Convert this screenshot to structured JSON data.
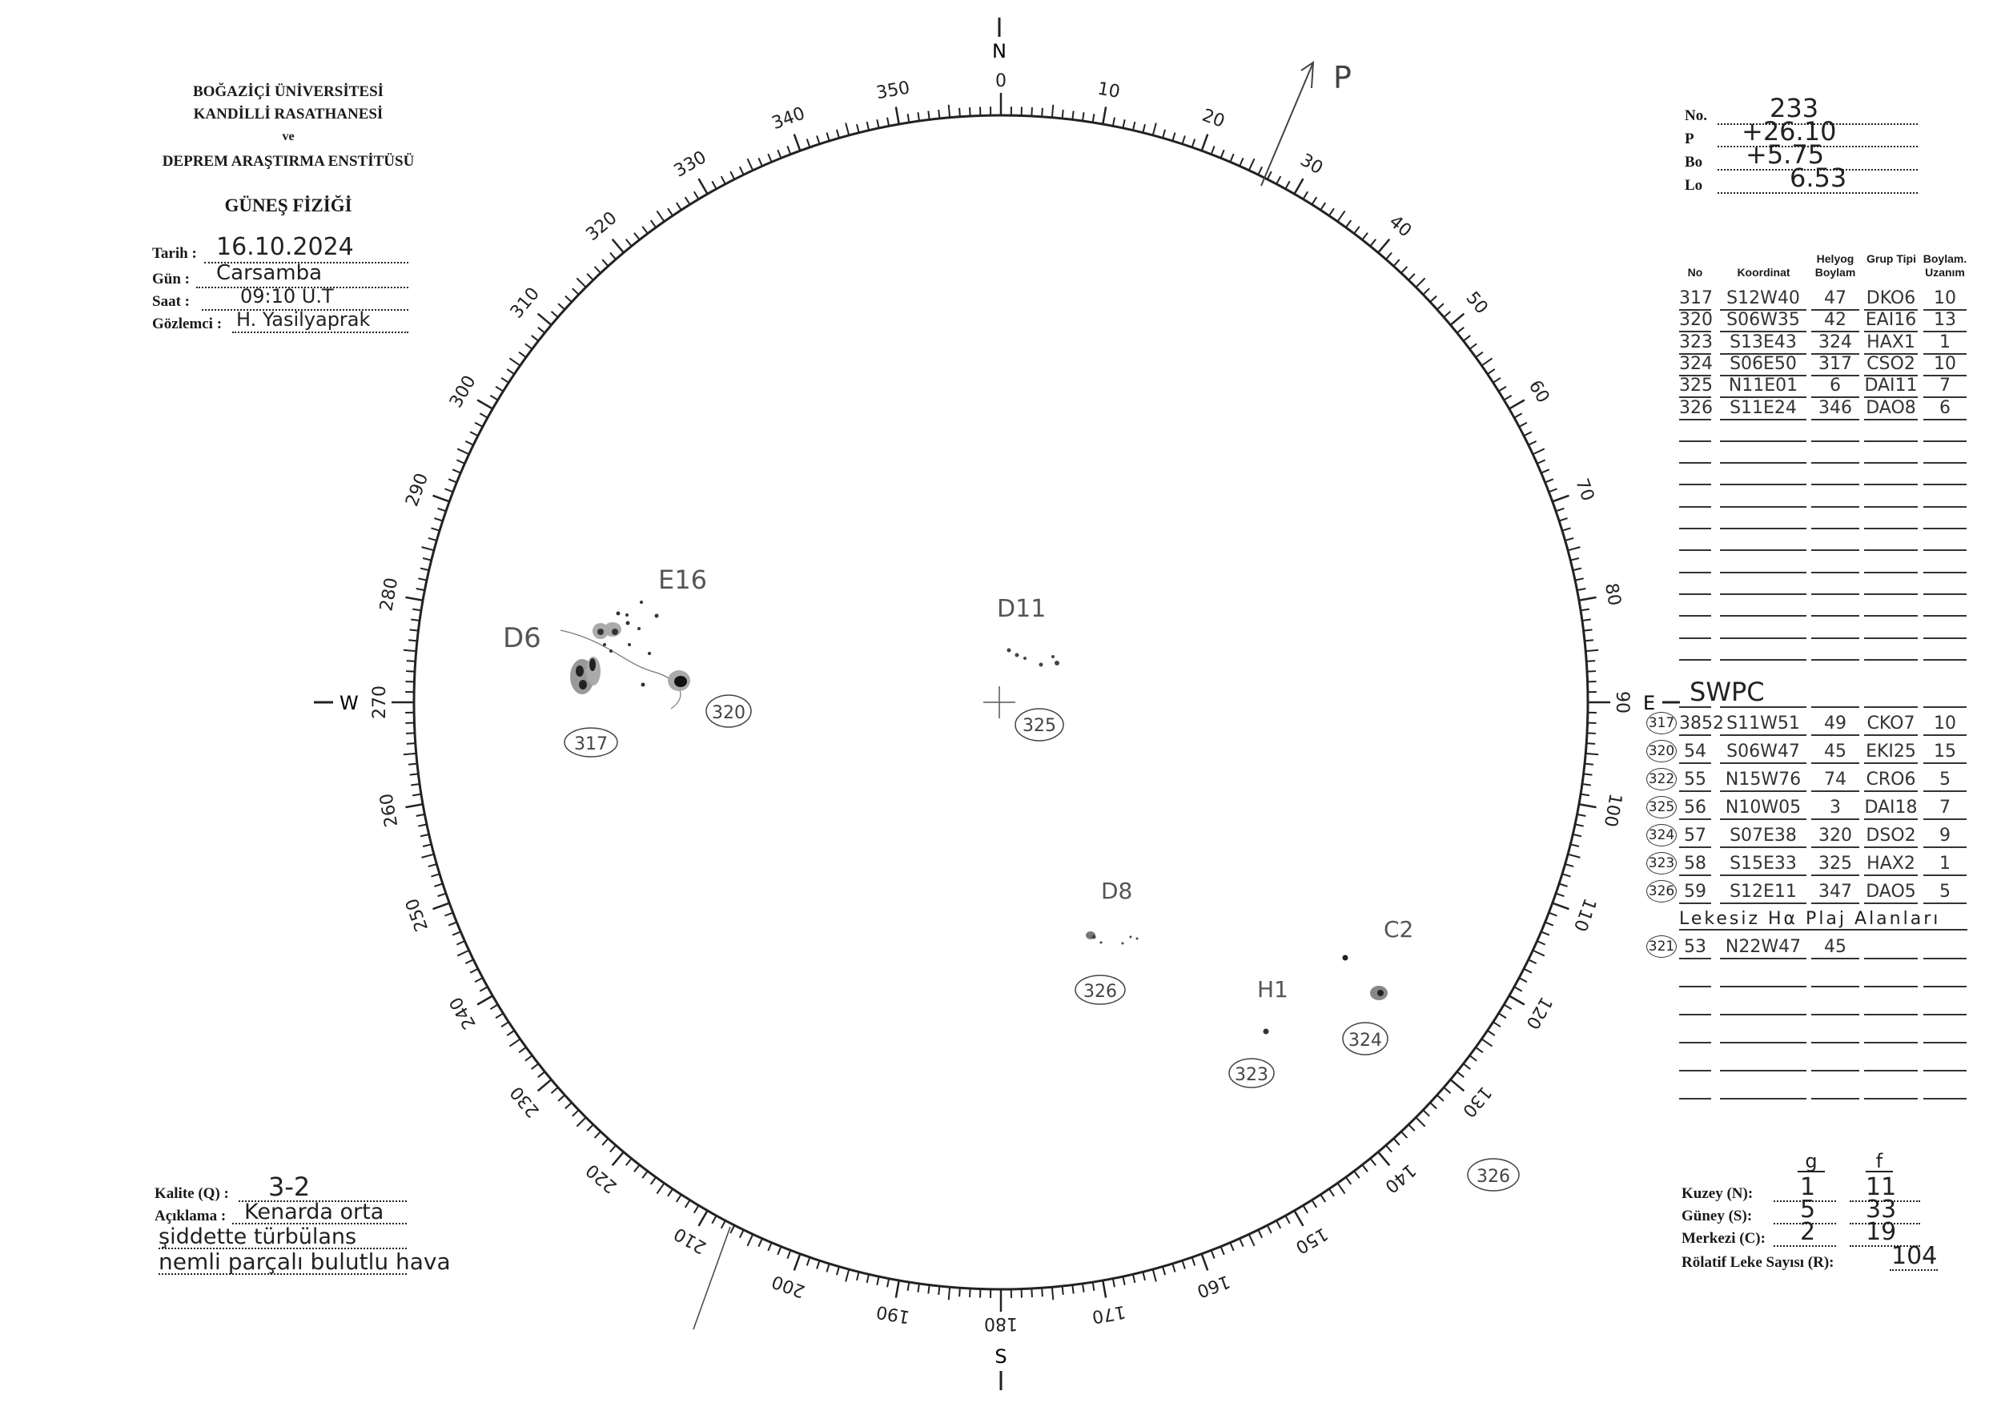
{
  "header": {
    "institution": [
      "BOĞAZİÇİ ÜNİVERSİTESİ",
      "KANDİLLİ RASATHANESİ",
      "ve",
      "DEPREM ARAŞTIRMA ENSTİTÜSÜ"
    ],
    "department": "GÜNEŞ FİZİĞİ"
  },
  "observation": {
    "date_label": "Tarih :",
    "date": "16.10.2024",
    "day_label": "Gün :",
    "day": "Carsamba",
    "time_label": "Saat :",
    "time": "09:10 U.T",
    "observer_label": "Gözlemci :",
    "observer": "H. Yasilyaprak"
  },
  "ephemeris": {
    "no_label": "No.",
    "no": "233",
    "p_label": "P",
    "p": "+26.10",
    "bo_label": "Bo",
    "bo": "+5.75",
    "lo_label": "Lo",
    "lo": "6.53"
  },
  "table": {
    "headers": [
      "No",
      "Koordinat",
      "Helyog Boylam",
      "Grup Tipi",
      "Boylam. Uzanım"
    ],
    "rows": [
      [
        "317",
        "S12W40",
        "47",
        "DKO6",
        "10"
      ],
      [
        "320",
        "S06W35",
        "42",
        "EAI16",
        "13"
      ],
      [
        "323",
        "S13E43",
        "324",
        "HAX1",
        "1"
      ],
      [
        "324",
        "S06E50",
        "317",
        "CSO2",
        "10"
      ],
      [
        "325",
        "N11E01",
        "6",
        "DAI11",
        "7"
      ],
      [
        "326",
        "S11E24",
        "346",
        "DAO8",
        "6"
      ]
    ]
  },
  "swpc": {
    "title": "SWPC",
    "rows": [
      {
        "ref": "317",
        "cells": [
          "3852",
          "S11W51",
          "49",
          "CKO7",
          "10"
        ]
      },
      {
        "ref": "320",
        "cells": [
          "54",
          "S06W47",
          "45",
          "EKI25",
          "15"
        ]
      },
      {
        "ref": "322",
        "cells": [
          "55",
          "N15W76",
          "74",
          "CRO6",
          "5"
        ]
      },
      {
        "ref": "325",
        "cells": [
          "56",
          "N10W05",
          "3",
          "DAI18",
          "7"
        ]
      },
      {
        "ref": "324",
        "cells": [
          "57",
          "S07E38",
          "320",
          "DSO2",
          "9"
        ]
      },
      {
        "ref": "323",
        "cells": [
          "58",
          "S15E33",
          "325",
          "HAX2",
          "1"
        ]
      },
      {
        "ref": "326",
        "cells": [
          "59",
          "S12E11",
          "347",
          "DAO5",
          "5"
        ]
      }
    ],
    "plage_note": "Lekesiz Hα Plaj Alanları",
    "plage_row": {
      "ref": "321",
      "cells": [
        "53",
        "N22W47",
        "45",
        "",
        ""
      ]
    }
  },
  "counts": {
    "g_label": "g",
    "f_label": "f",
    "north_label": "Kuzey (N):",
    "north_g": "1",
    "north_f": "11",
    "south_label": "Güney (S):",
    "south_g": "5",
    "south_f": "33",
    "center_label": "Merkezi (C):",
    "center_g": "2",
    "center_f": "19",
    "r_label": "Rölatif Leke Sayısı (R):",
    "r": "104"
  },
  "quality": {
    "q_label": "Kalite (Q) :",
    "q": "3-2",
    "note_label": "Açıklama :",
    "note_lines": [
      "Kenarda orta",
      "şiddette türbülans",
      "nemli parçalı bulutlu hava"
    ]
  },
  "disk": {
    "cardinals": {
      "n": "N",
      "s": "S",
      "e": "E",
      "w": "W"
    },
    "p_axis_label": "P",
    "groups": [
      {
        "class": "D6",
        "id": "317"
      },
      {
        "class": "E16",
        "id": "320"
      },
      {
        "class": "D11",
        "id": "325"
      },
      {
        "class": "D8",
        "id": "326"
      },
      {
        "class": "H1",
        "id": "323"
      },
      {
        "class": "C2",
        "id": "324"
      }
    ],
    "outside_label": "326",
    "ink": "#333333"
  }
}
